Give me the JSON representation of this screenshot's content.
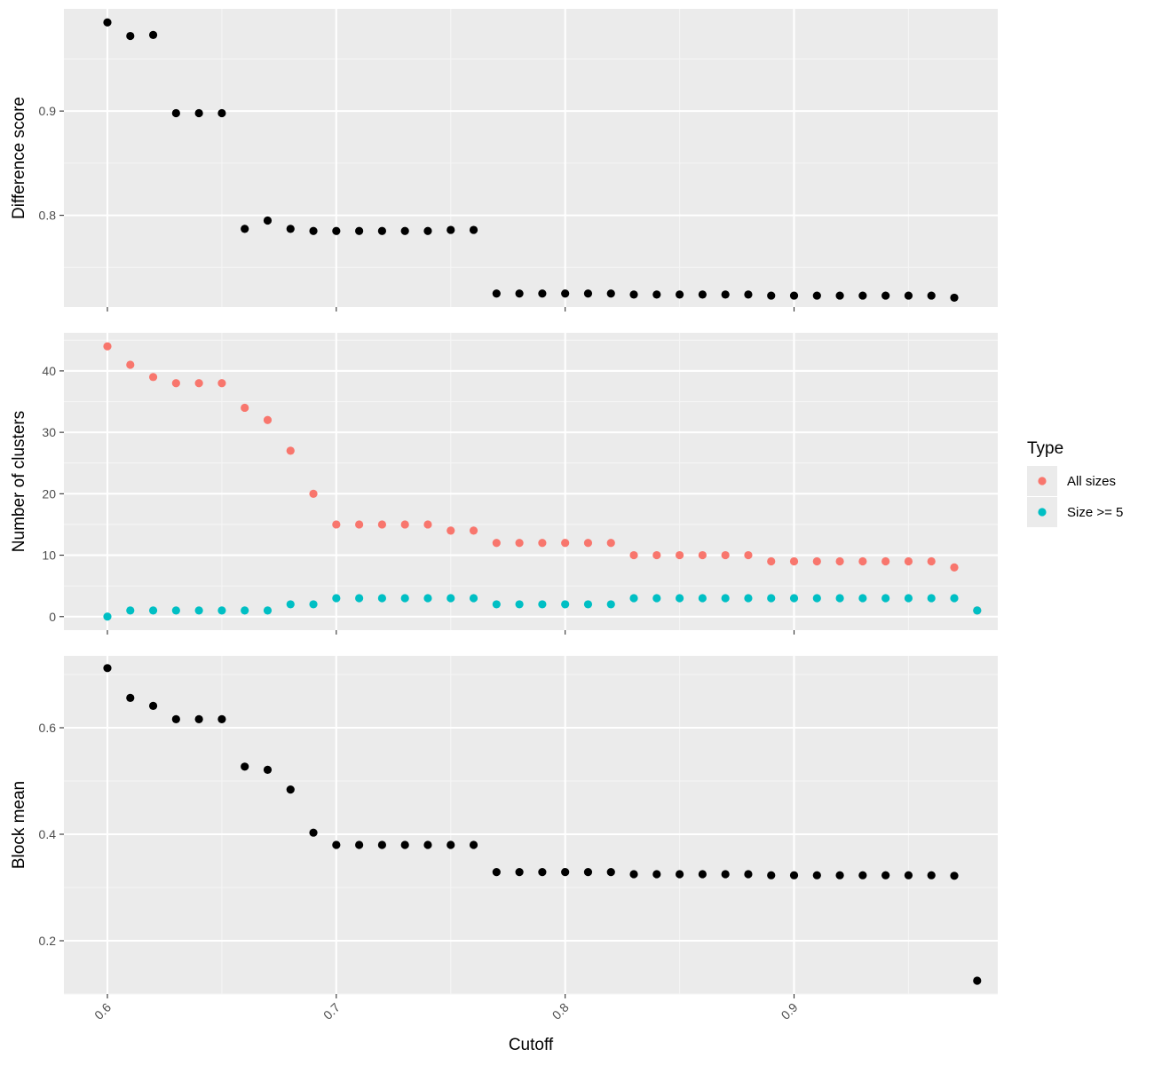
{
  "chart_data": {
    "type": "scatter",
    "facet_layout": "vertical",
    "colors": {
      "panel_bg": "#EBEBEB",
      "grid_major": "#FFFFFF",
      "grid_minor": "#F5F5F5",
      "default_point": "#000000",
      "all_sizes": "#F8766D",
      "size_ge_5": "#00BFC4"
    },
    "x": {
      "label": "Cutoff",
      "lim": [
        0.581,
        0.989
      ],
      "ticks": [
        0.6,
        0.7,
        0.8,
        0.9
      ],
      "tick_labels": [
        "0.6",
        "0.7",
        "0.8",
        "0.9"
      ],
      "values": [
        0.6,
        0.61,
        0.62,
        0.63,
        0.64,
        0.65,
        0.66,
        0.67,
        0.68,
        0.69,
        0.7,
        0.71,
        0.72,
        0.73,
        0.74,
        0.75,
        0.76,
        0.77,
        0.78,
        0.79,
        0.8,
        0.81,
        0.82,
        0.83,
        0.84,
        0.85,
        0.86,
        0.87,
        0.88,
        0.89,
        0.9,
        0.91,
        0.92,
        0.93,
        0.94,
        0.95,
        0.96,
        0.97,
        0.98
      ]
    },
    "panels": [
      {
        "ylabel": "Difference score",
        "ylim": [
          0.712,
          0.998
        ],
        "yticks": [
          0.8,
          0.9
        ],
        "ytick_labels": [
          "0.8",
          "0.9"
        ],
        "series": [
          {
            "name": "",
            "color": "#000000",
            "values": [
              0.985,
              0.972,
              0.973,
              0.898,
              0.898,
              0.898,
              0.787,
              0.795,
              0.787,
              0.785,
              0.785,
              0.785,
              0.785,
              0.785,
              0.785,
              0.786,
              0.786,
              0.725,
              0.725,
              0.725,
              0.725,
              0.725,
              0.725,
              0.724,
              0.724,
              0.724,
              0.724,
              0.724,
              0.724,
              0.723,
              0.723,
              0.723,
              0.723,
              0.723,
              0.723,
              0.723,
              0.723,
              0.721,
              null
            ]
          }
        ]
      },
      {
        "ylabel": "Number of clusters",
        "ylim": [
          -2.2,
          46.2
        ],
        "yticks": [
          0,
          10,
          20,
          30,
          40
        ],
        "ytick_labels": [
          "0",
          "10",
          "20",
          "30",
          "40"
        ],
        "series": [
          {
            "name": "All sizes",
            "color": "#F8766D",
            "values": [
              44,
              41,
              39,
              38,
              38,
              38,
              34,
              32,
              27,
              20,
              15,
              15,
              15,
              15,
              15,
              14,
              14,
              12,
              12,
              12,
              12,
              12,
              12,
              10,
              10,
              10,
              10,
              10,
              10,
              9,
              9,
              9,
              9,
              9,
              9,
              9,
              9,
              8,
              1
            ]
          },
          {
            "name": "Size >= 5",
            "color": "#00BFC4",
            "values": [
              0,
              1,
              1,
              1,
              1,
              1,
              1,
              1,
              2,
              2,
              3,
              3,
              3,
              3,
              3,
              3,
              3,
              2,
              2,
              2,
              2,
              2,
              2,
              3,
              3,
              3,
              3,
              3,
              3,
              3,
              3,
              3,
              3,
              3,
              3,
              3,
              3,
              3,
              1
            ]
          }
        ]
      },
      {
        "ylabel": "Block mean",
        "ylim": [
          0.1,
          0.735
        ],
        "yticks": [
          0.2,
          0.4,
          0.6
        ],
        "ytick_labels": [
          "0.2",
          "0.4",
          "0.6"
        ],
        "series": [
          {
            "name": "",
            "color": "#000000",
            "values": [
              0.712,
              0.656,
              0.641,
              0.616,
              0.616,
              0.616,
              0.527,
              0.521,
              0.484,
              0.403,
              0.38,
              0.38,
              0.38,
              0.38,
              0.38,
              0.38,
              0.38,
              0.329,
              0.329,
              0.329,
              0.329,
              0.329,
              0.329,
              0.325,
              0.325,
              0.325,
              0.325,
              0.325,
              0.325,
              0.323,
              0.323,
              0.323,
              0.323,
              0.323,
              0.323,
              0.323,
              0.323,
              0.322,
              0.125
            ]
          }
        ]
      }
    ],
    "legend": {
      "title": "Type",
      "position": "right",
      "entries": [
        {
          "label": "All sizes",
          "color": "#F8766D"
        },
        {
          "label": "Size >= 5",
          "color": "#00BFC4"
        }
      ]
    },
    "grid": true
  }
}
